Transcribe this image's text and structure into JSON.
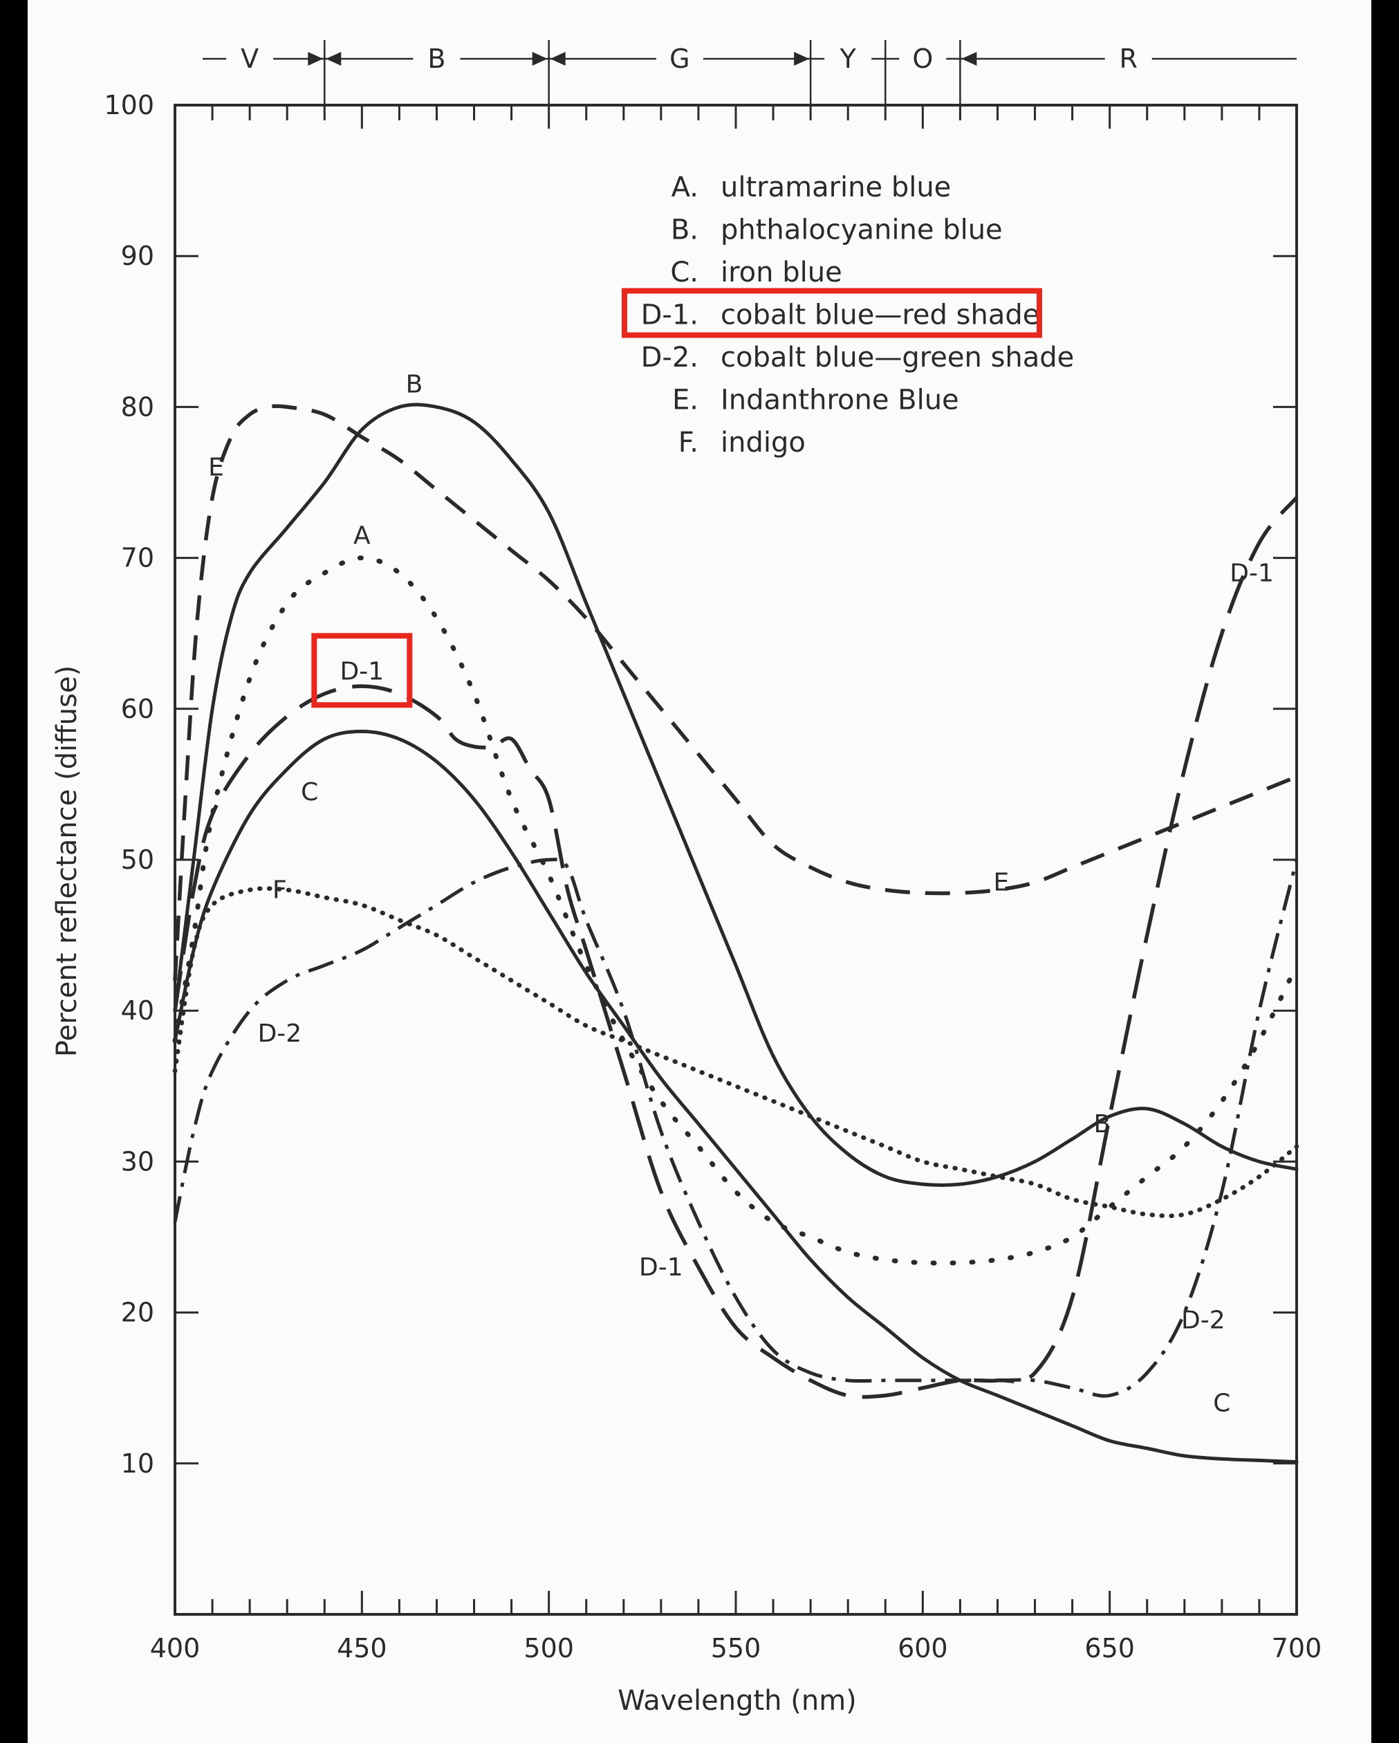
{
  "chart_data": {
    "type": "line",
    "title": "",
    "xlabel": "Wavelength (nm)",
    "ylabel": "Percent reflectance (diffuse)",
    "xlim": [
      400,
      700
    ],
    "ylim": [
      0,
      100
    ],
    "x_ticks": [
      "400",
      "450",
      "500",
      "550",
      "600",
      "650",
      "700"
    ],
    "y_ticks": [
      "10",
      "20",
      "30",
      "40",
      "50",
      "60",
      "70",
      "80",
      "90",
      "100"
    ],
    "grid": false,
    "color_bands": [
      {
        "label": "V",
        "start": 400,
        "end": 440
      },
      {
        "label": "B",
        "start": 440,
        "end": 500
      },
      {
        "label": "G",
        "start": 500,
        "end": 570
      },
      {
        "label": "Y",
        "start": 570,
        "end": 590
      },
      {
        "label": "O",
        "start": 590,
        "end": 610
      },
      {
        "label": "R",
        "start": 610,
        "end": 700
      }
    ],
    "legend": [
      {
        "key": "A.",
        "text": "ultramarine blue"
      },
      {
        "key": "B.",
        "text": "phthalocyanine blue"
      },
      {
        "key": "C.",
        "text": "iron blue"
      },
      {
        "key": "D-1.",
        "text": "cobalt blue—red shade"
      },
      {
        "key": "D-2.",
        "text": "cobalt blue—green shade"
      },
      {
        "key": "E.",
        "text": "Indanthrone Blue"
      },
      {
        "key": "F.",
        "text": "indigo"
      }
    ],
    "series": [
      {
        "name": "A",
        "style": "dotted",
        "x": [
          400,
          405,
          410,
          420,
          430,
          440,
          450,
          460,
          470,
          480,
          490,
          500,
          510,
          520,
          530,
          540,
          550,
          560,
          570,
          580,
          590,
          600,
          610,
          620,
          630,
          640,
          650,
          660,
          670,
          680,
          690,
          700
        ],
        "y": [
          38,
          45,
          53,
          62,
          67,
          69,
          70,
          69,
          66,
          61,
          54,
          49,
          43,
          38,
          34,
          31,
          28,
          26,
          25,
          24,
          23.5,
          23.3,
          23.3,
          23.5,
          24,
          25,
          27,
          29,
          31,
          34,
          38,
          43
        ]
      },
      {
        "name": "B",
        "style": "solid",
        "x": [
          400,
          405,
          410,
          415,
          420,
          430,
          440,
          450,
          460,
          470,
          480,
          490,
          500,
          510,
          520,
          530,
          540,
          550,
          560,
          570,
          580,
          590,
          600,
          610,
          620,
          630,
          640,
          650,
          660,
          670,
          680,
          690,
          700
        ],
        "y": [
          40,
          50,
          60,
          66,
          69,
          72,
          75,
          78.5,
          80,
          80,
          79,
          76.5,
          73,
          67,
          61,
          55,
          49,
          43,
          37,
          33,
          30.5,
          29,
          28.5,
          28.5,
          29,
          30,
          31.5,
          33,
          33.5,
          32.5,
          31,
          30,
          29.5
        ]
      },
      {
        "name": "C",
        "style": "solid",
        "x": [
          400,
          405,
          410,
          420,
          430,
          440,
          450,
          460,
          470,
          480,
          490,
          500,
          510,
          520,
          530,
          540,
          550,
          560,
          570,
          580,
          590,
          600,
          610,
          620,
          630,
          640,
          650,
          660,
          670,
          680,
          690,
          700
        ],
        "y": [
          38,
          44,
          48,
          53,
          56,
          58,
          58.5,
          58,
          56.5,
          54,
          50.5,
          46.5,
          42.5,
          39,
          35.5,
          32.5,
          29.5,
          26.5,
          23.5,
          21,
          19,
          17,
          15.5,
          14.5,
          13.5,
          12.5,
          11.5,
          11,
          10.5,
          10.3,
          10.2,
          10.1
        ]
      },
      {
        "name": "D-1",
        "style": "long-dash",
        "x": [
          400,
          405,
          410,
          420,
          430,
          440,
          450,
          460,
          470,
          475,
          480,
          485,
          490,
          495,
          500,
          505,
          510,
          520,
          530,
          540,
          550,
          560,
          570,
          580,
          590,
          600,
          610,
          620,
          630,
          640,
          650,
          660,
          670,
          680,
          690,
          700
        ],
        "y": [
          40,
          48,
          53,
          57,
          59.5,
          61,
          61.5,
          61,
          59.5,
          58,
          57.5,
          57.5,
          58,
          56,
          54,
          48,
          44,
          36,
          28,
          23,
          19,
          17,
          15.5,
          14.5,
          14.5,
          15,
          15.5,
          15.5,
          16,
          21,
          33,
          45,
          56,
          65,
          71,
          74
        ]
      },
      {
        "name": "D-2",
        "style": "dash-dot",
        "x": [
          400,
          405,
          410,
          420,
          430,
          440,
          450,
          460,
          470,
          480,
          490,
          500,
          505,
          510,
          520,
          530,
          540,
          550,
          560,
          570,
          580,
          590,
          600,
          610,
          620,
          630,
          640,
          650,
          660,
          670,
          680,
          690,
          700
        ],
        "y": [
          26,
          32,
          36,
          40,
          42,
          43,
          44,
          45.5,
          47,
          48.5,
          49.5,
          50,
          49.5,
          46,
          40,
          32,
          26,
          21,
          17.5,
          16,
          15.5,
          15.5,
          15.5,
          15.5,
          15.5,
          15.5,
          15,
          14.5,
          16,
          20,
          28,
          40,
          50
        ]
      },
      {
        "name": "E",
        "style": "dashed",
        "x": [
          400,
          403,
          406,
          410,
          415,
          420,
          425,
          430,
          440,
          450,
          460,
          470,
          480,
          490,
          500,
          510,
          520,
          530,
          540,
          550,
          560,
          570,
          580,
          590,
          600,
          610,
          620,
          630,
          640,
          650,
          660,
          670,
          680,
          690,
          700
        ],
        "y": [
          42,
          55,
          66,
          74,
          78,
          79.5,
          80,
          80,
          79.5,
          78,
          76.5,
          74.5,
          72.5,
          70.5,
          68.5,
          66,
          63,
          60,
          57,
          54,
          51,
          49.5,
          48.5,
          48,
          47.8,
          47.8,
          48,
          48.5,
          49.5,
          50.5,
          51.5,
          52.5,
          53.5,
          54.5,
          55.5
        ]
      },
      {
        "name": "F",
        "style": "fine-dotted",
        "x": [
          400,
          405,
          410,
          420,
          430,
          440,
          450,
          460,
          470,
          480,
          490,
          500,
          510,
          520,
          530,
          540,
          550,
          560,
          570,
          580,
          590,
          600,
          610,
          620,
          630,
          640,
          650,
          660,
          670,
          680,
          690,
          700
        ],
        "y": [
          36,
          44,
          47,
          48,
          48,
          47.5,
          47,
          46,
          45,
          43.5,
          42,
          40.5,
          39,
          38,
          37,
          36,
          35,
          34,
          33,
          32,
          31,
          30,
          29.5,
          29,
          28.5,
          27.5,
          27,
          26.5,
          26.5,
          27.5,
          29,
          31
        ]
      }
    ],
    "curve_labels": [
      {
        "text": "A",
        "x": 450,
        "y": 71.5
      },
      {
        "text": "B",
        "x": 464,
        "y": 81.5
      },
      {
        "text": "C",
        "x": 436,
        "y": 54.5
      },
      {
        "text": "D-1",
        "x": 450,
        "y": 62.5
      },
      {
        "text": "D-1",
        "x": 530,
        "y": 23
      },
      {
        "text": "D-1",
        "x": 688,
        "y": 69
      },
      {
        "text": "D-2",
        "x": 428,
        "y": 38.5
      },
      {
        "text": "D-2",
        "x": 675,
        "y": 19.5
      },
      {
        "text": "E",
        "x": 411,
        "y": 76
      },
      {
        "text": "E",
        "x": 621,
        "y": 48.5
      },
      {
        "text": "F",
        "x": 428,
        "y": 48
      },
      {
        "text": "B",
        "x": 648,
        "y": 32.5
      },
      {
        "text": "C",
        "x": 680,
        "y": 14
      }
    ],
    "highlights": [
      {
        "target": "legend",
        "index": 3,
        "color": "#e8271d"
      },
      {
        "target": "curve-label",
        "text": "D-1",
        "x": 450,
        "y": 62.5,
        "color": "#e8271d"
      }
    ]
  }
}
